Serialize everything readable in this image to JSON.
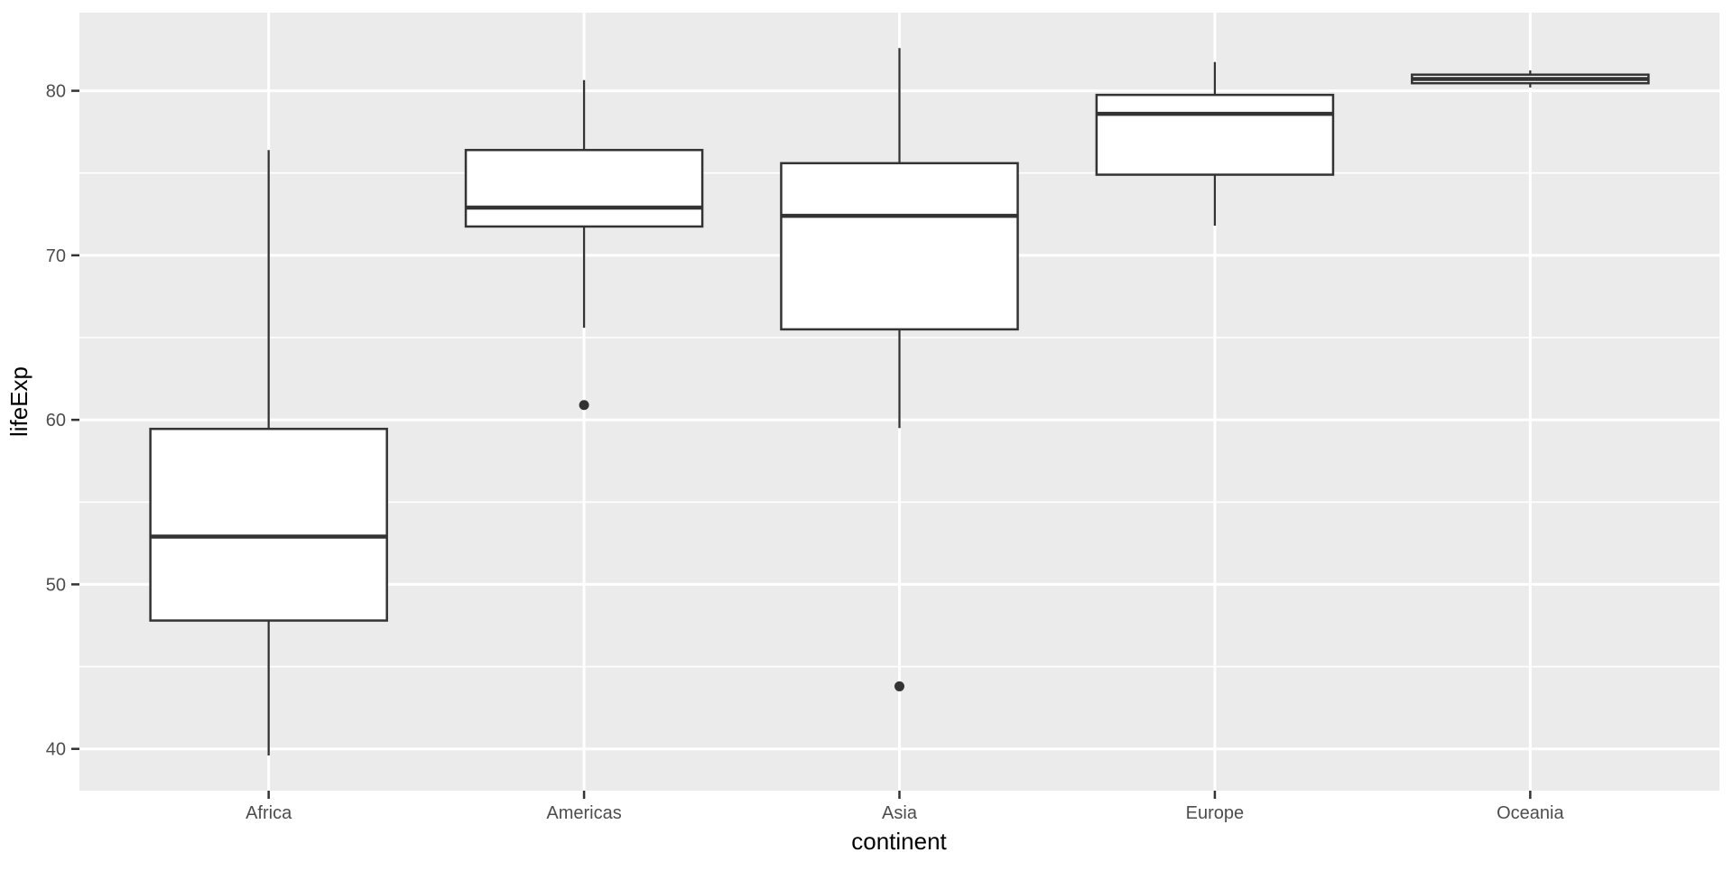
{
  "chart_data": {
    "type": "boxplot",
    "title": "",
    "xlabel": "continent",
    "ylabel": "lifeExp",
    "categories": [
      "Africa",
      "Americas",
      "Asia",
      "Europe",
      "Oceania"
    ],
    "ylim": [
      37.46,
      84.75
    ],
    "y_major_ticks": [
      40,
      50,
      60,
      70,
      80
    ],
    "y_minor_ticks": [
      45,
      55,
      65,
      75
    ],
    "grid": true,
    "legend": "none",
    "x_expand_units": 0.6,
    "box_width_frac": 0.75,
    "series": [
      {
        "category": "Africa",
        "whisker_low": 39.6,
        "q1": 47.8,
        "median": 52.9,
        "q3": 59.45,
        "whisker_high": 76.4,
        "outliers": []
      },
      {
        "category": "Americas",
        "whisker_low": 65.6,
        "q1": 71.75,
        "median": 72.9,
        "q3": 76.4,
        "whisker_high": 80.65,
        "outliers": [
          60.9
        ]
      },
      {
        "category": "Asia",
        "whisker_low": 59.5,
        "q1": 65.5,
        "median": 72.4,
        "q3": 75.6,
        "whisker_high": 82.6,
        "outliers": [
          43.8
        ]
      },
      {
        "category": "Europe",
        "whisker_low": 71.8,
        "q1": 74.9,
        "median": 78.6,
        "q3": 79.75,
        "whisker_high": 81.75,
        "outliers": []
      },
      {
        "category": "Oceania",
        "whisker_low": 80.2,
        "q1": 80.46,
        "median": 80.72,
        "q3": 80.98,
        "whisker_high": 81.24,
        "outliers": []
      }
    ],
    "style": {
      "panel_background": "#EBEBEB",
      "grid_color": "#FFFFFF",
      "box_fill": "#FFFFFF",
      "line_color": "#333333",
      "outlier_color": "#333333",
      "tick_color": "#333333",
      "axis_text_color": "#4D4D4D",
      "axis_title_color": "#000000",
      "figure_background": "#FFFFFF"
    }
  }
}
